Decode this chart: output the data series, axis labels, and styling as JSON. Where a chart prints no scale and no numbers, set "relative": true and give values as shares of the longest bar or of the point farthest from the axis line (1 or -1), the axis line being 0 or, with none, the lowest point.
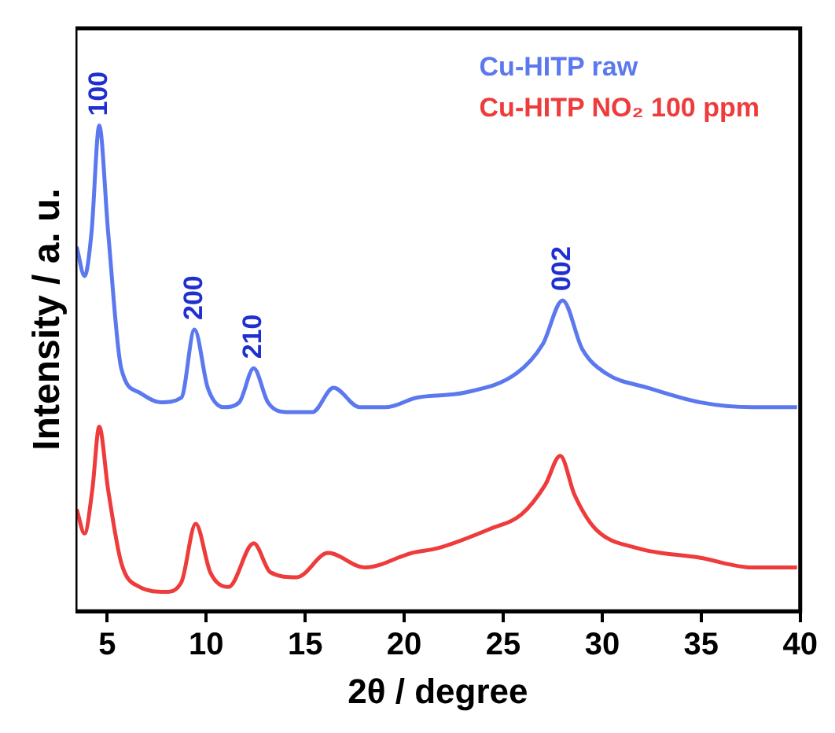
{
  "chart_data": {
    "type": "line",
    "relative": true,
    "xlabel": "2θ / degree",
    "ylabel": "Intensity / a. u.",
    "xlim": [
      3.4,
      40
    ],
    "xticks": [
      5,
      10,
      15,
      20,
      25,
      30,
      35,
      40
    ],
    "legend": "top right",
    "grid": false,
    "marker": "none",
    "line_style": "solid",
    "series": [
      {
        "name": "Cu-HITP raw",
        "color": "#5b78ee",
        "x": [
          3.46,
          3.86,
          4.21,
          4.6,
          5.05,
          5.71,
          6.64,
          7.7,
          8.75,
          9.41,
          10.08,
          10.87,
          11.67,
          12.4,
          13.12,
          14.05,
          15.37,
          16.43,
          17.75,
          19.07,
          20.66,
          23.04,
          25.68,
          27.0,
          28.0,
          28.99,
          30.18,
          32.3,
          34.96,
          37.6,
          39.84
        ],
        "values": [
          0.75,
          0.69,
          0.78,
          1.0,
          0.78,
          0.5,
          0.45,
          0.43,
          0.44,
          0.58,
          0.46,
          0.42,
          0.43,
          0.5,
          0.43,
          0.41,
          0.41,
          0.46,
          0.42,
          0.42,
          0.44,
          0.45,
          0.49,
          0.55,
          0.64,
          0.54,
          0.49,
          0.46,
          0.43,
          0.42,
          0.42
        ]
      },
      {
        "name": "Cu-HITP NO₂ 100 ppm",
        "color": "#ee3b3b",
        "x": [
          3.46,
          3.86,
          4.25,
          4.6,
          5.05,
          5.71,
          6.64,
          7.96,
          8.75,
          9.47,
          10.21,
          11.13,
          12.4,
          13.25,
          14.57,
          16.16,
          18.01,
          20.39,
          21.71,
          24.36,
          25.94,
          27.12,
          27.88,
          28.6,
          29.65,
          31.77,
          34.96,
          37.6,
          39.84
        ],
        "values": [
          0.21,
          0.16,
          0.25,
          0.38,
          0.25,
          0.1,
          0.05,
          0.04,
          0.06,
          0.18,
          0.08,
          0.05,
          0.14,
          0.08,
          0.07,
          0.12,
          0.09,
          0.12,
          0.13,
          0.17,
          0.2,
          0.26,
          0.32,
          0.24,
          0.17,
          0.13,
          0.11,
          0.09,
          0.09
        ]
      }
    ],
    "annotations": [
      {
        "text": "100",
        "x": 4.6,
        "y": 1.0
      },
      {
        "text": "200",
        "x": 9.41,
        "y": 0.58
      },
      {
        "text": "210",
        "x": 12.4,
        "y": 0.5
      },
      {
        "text": "002",
        "x": 28.0,
        "y": 0.64
      }
    ]
  }
}
